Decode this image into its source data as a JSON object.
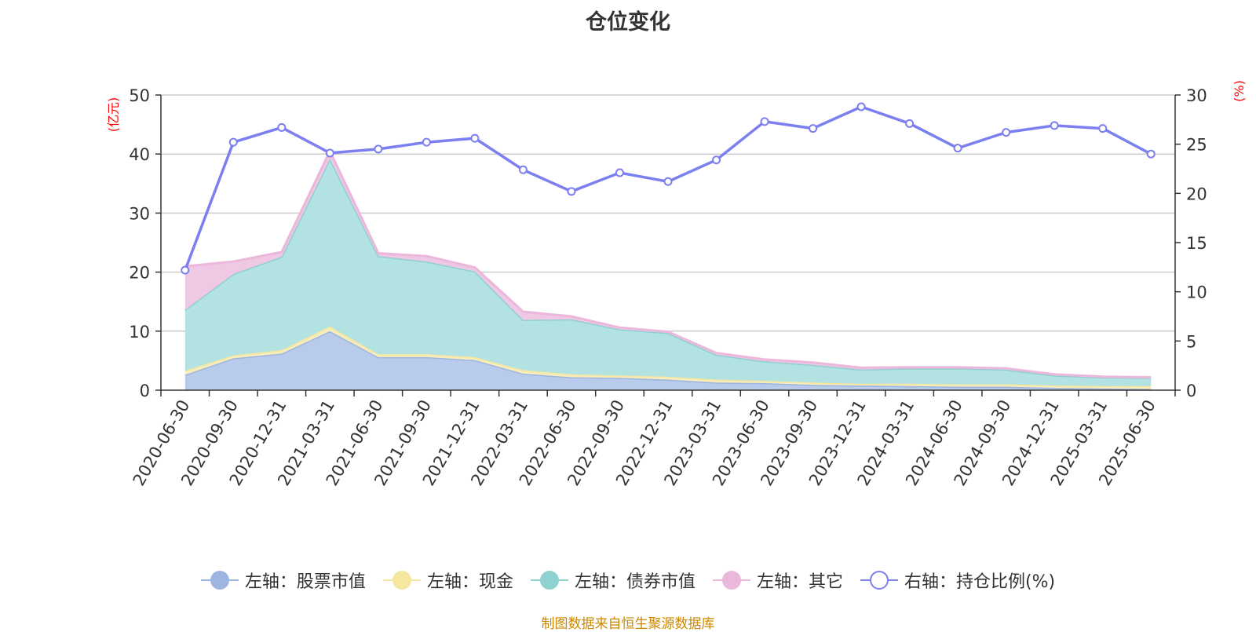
{
  "chart_data": {
    "type": "area",
    "title": "仓位变化",
    "left_axis_unit": "(亿元)",
    "right_axis_unit": "(%)",
    "categories": [
      "2020-06-30",
      "2020-09-30",
      "2020-12-31",
      "2021-03-31",
      "2021-06-30",
      "2021-09-30",
      "2021-12-31",
      "2022-03-31",
      "2022-06-30",
      "2022-09-30",
      "2022-12-31",
      "2023-03-31",
      "2023-06-30",
      "2023-09-30",
      "2023-12-31",
      "2024-03-31",
      "2024-06-30",
      "2024-09-30",
      "2024-12-31",
      "2025-03-31",
      "2025-06-30"
    ],
    "left_ylim": [
      0,
      50
    ],
    "left_yticks": [
      0,
      10,
      20,
      30,
      40,
      50
    ],
    "right_ylim": [
      0,
      30
    ],
    "right_yticks": [
      0,
      5,
      10,
      15,
      20,
      25,
      30
    ],
    "stacked": true,
    "grid": true,
    "legend_position": "bottom",
    "series": [
      {
        "name": "左轴：股票市值",
        "axis": "left",
        "type": "area",
        "values": [
          2.6,
          5.4,
          6.2,
          10.0,
          5.6,
          5.6,
          5.1,
          2.8,
          2.2,
          2.1,
          1.8,
          1.3,
          1.2,
          0.9,
          0.8,
          0.7,
          0.6,
          0.6,
          0.4,
          0.3,
          0.2
        ],
        "color": "#9db5e0",
        "fill": "#b8cbeb"
      },
      {
        "name": "左轴：现金",
        "axis": "left",
        "type": "area",
        "values": [
          0.7,
          0.5,
          0.6,
          0.8,
          0.5,
          0.5,
          0.5,
          0.6,
          0.5,
          0.4,
          0.5,
          0.5,
          0.4,
          0.4,
          0.3,
          0.4,
          0.4,
          0.4,
          0.4,
          0.4,
          0.5
        ],
        "color": "#f5e6a0",
        "fill": "#f7edbb"
      },
      {
        "name": "左轴：债券市值",
        "axis": "left",
        "type": "area",
        "values": [
          10.3,
          13.8,
          15.8,
          28.4,
          16.6,
          15.7,
          14.5,
          8.5,
          9.3,
          7.8,
          7.4,
          4.2,
          3.3,
          3.0,
          2.4,
          2.6,
          2.7,
          2.5,
          1.7,
          1.5,
          1.4
        ],
        "color": "#8fd1d1",
        "fill": "#b3e2e2"
      },
      {
        "name": "左轴：其它",
        "axis": "left",
        "type": "area",
        "values": [
          7.4,
          2.1,
          0.8,
          1.3,
          0.5,
          0.9,
          0.7,
          1.4,
          0.5,
          0.3,
          0.2,
          0.3,
          0.3,
          0.4,
          0.3,
          0.2,
          0.2,
          0.2,
          0.2,
          0.1,
          0.1
        ],
        "color": "#ebb7db",
        "fill": "#efc8e3"
      },
      {
        "name": "右轴：持仓比例(%)",
        "axis": "right",
        "type": "line",
        "values": [
          12.2,
          25.2,
          26.7,
          24.1,
          24.5,
          25.2,
          25.6,
          22.4,
          20.2,
          22.1,
          21.2,
          23.4,
          27.3,
          26.6,
          28.8,
          27.1,
          24.6,
          26.2,
          26.9,
          26.6,
          24.0
        ],
        "color": "#7b7fef"
      }
    ]
  },
  "footer": {
    "source": "制图数据来自恒生聚源数据库"
  }
}
